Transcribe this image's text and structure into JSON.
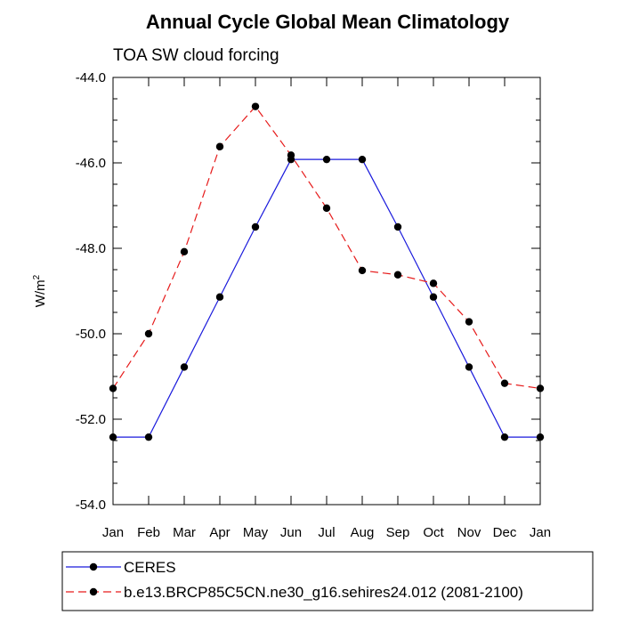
{
  "chart_data": {
    "type": "line",
    "title": "Annual Cycle Global Mean Climatology",
    "subtitle": "TOA SW cloud forcing",
    "xlabel": "",
    "ylabel": "W/m",
    "ylabel_superscript": "2",
    "categories": [
      "Jan",
      "Feb",
      "Mar",
      "Apr",
      "May",
      "Jun",
      "Jul",
      "Aug",
      "Sep",
      "Oct",
      "Nov",
      "Dec",
      "Jan"
    ],
    "ylim": [
      -54.0,
      -44.0
    ],
    "yticks": [
      -54.0,
      -52.0,
      -50.0,
      -48.0,
      -46.0,
      -44.0
    ],
    "ytick_labels": [
      "-54.0",
      "-52.0",
      "-50.0",
      "-48.0",
      "-46.0",
      "-44.0"
    ],
    "series": [
      {
        "name": "CERES",
        "color": "#1a1adc",
        "style": "solid",
        "values": [
          -52.42,
          -52.42,
          -50.78,
          -49.14,
          -47.5,
          -45.92,
          -45.92,
          -45.92,
          -47.5,
          -49.14,
          -50.78,
          -52.42,
          -52.42
        ]
      },
      {
        "name": "b.e13.BRCP85C5CN.ne30_g16.sehires24.012 (2081-2100)",
        "color": "#e61a1a",
        "style": "dashed",
        "values": [
          -51.28,
          -50.0,
          -48.08,
          -45.62,
          -44.68,
          -45.82,
          -47.06,
          -48.52,
          -48.62,
          -48.82,
          -49.72,
          -51.16,
          -51.28
        ]
      }
    ]
  }
}
